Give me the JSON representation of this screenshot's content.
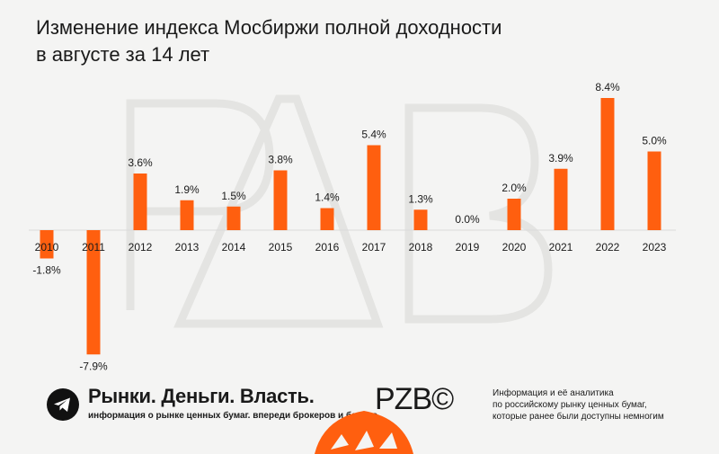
{
  "header": {
    "title_line1": "Изменение индекса Мосбиржи полной доходности",
    "title_line2": "в августе за 14 лет"
  },
  "chart_data": {
    "type": "bar",
    "categories": [
      "2010",
      "2011",
      "2012",
      "2013",
      "2014",
      "2015",
      "2016",
      "2017",
      "2018",
      "2019",
      "2020",
      "2021",
      "2022",
      "2023"
    ],
    "values": [
      -1.8,
      -7.9,
      3.6,
      1.9,
      1.5,
      3.8,
      1.4,
      5.4,
      1.3,
      0.0,
      2.0,
      3.9,
      8.4,
      5.0
    ],
    "value_labels": [
      "-1.8%",
      "-7.9%",
      "3.6%",
      "1.9%",
      "1.5%",
      "3.8%",
      "1.4%",
      "5.4%",
      "1.3%",
      "0.0%",
      "2.0%",
      "3.9%",
      "8.4%",
      "5.0%"
    ],
    "ylim": [
      -7.9,
      8.4
    ],
    "grid": false,
    "legend": "none",
    "bar_color": "#ff5f0f"
  },
  "footer": {
    "brand": "Рынки. Деньги. Власть.",
    "tagline": "информация о рынке ценных бумаг. впереди брокеров и банков.",
    "mark": "PZB©",
    "info_line1": "Информация и её аналитика",
    "info_line2": "по российскому рынку ценных бумаг,",
    "info_line3": "которые ранее были доступны немногим",
    "logo_icon": "telegram-plane-icon"
  }
}
